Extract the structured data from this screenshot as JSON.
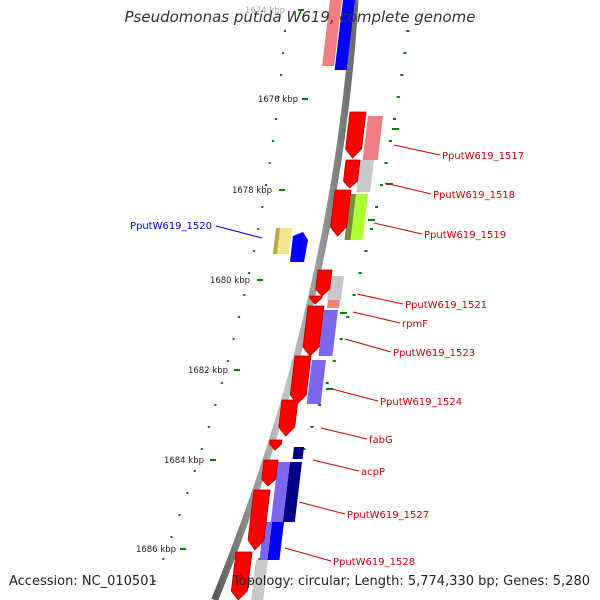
{
  "title": "Pseudomonas putida W619, complete genome",
  "accession_label": "Accession: NC_010501",
  "summary_label": "Topology: circular; Length: 5,774,330 bp; Genes: 5,280",
  "ruler": [
    {
      "kbp": 1674,
      "label": "1674 kbp"
    },
    {
      "kbp": 1676,
      "label": "1676 kbp"
    },
    {
      "kbp": 1678,
      "label": "1678 kbp"
    },
    {
      "kbp": 1680,
      "label": "1680 kbp"
    },
    {
      "kbp": 1682,
      "label": "1682 kbp"
    },
    {
      "kbp": 1684,
      "label": "1684 kbp"
    },
    {
      "kbp": 1686,
      "label": "1686 kbp"
    }
  ],
  "gene_labels": [
    {
      "text": "PputW619_1520",
      "color": "#0000cc"
    },
    {
      "text": "PputW619_1517",
      "color": "#cc0000"
    },
    {
      "text": "PputW619_1518",
      "color": "#cc0000"
    },
    {
      "text": "PputW619_1519",
      "color": "#cc0000"
    },
    {
      "text": "PputW619_1521",
      "color": "#cc0000"
    },
    {
      "text": "rpmF",
      "color": "#cc0000"
    },
    {
      "text": "PputW619_1523",
      "color": "#cc0000"
    },
    {
      "text": "PputW619_1524",
      "color": "#cc0000"
    },
    {
      "text": "fabG",
      "color": "#cc0000"
    },
    {
      "text": "acpP",
      "color": "#cc0000"
    },
    {
      "text": "PputW619_1527",
      "color": "#cc0000"
    },
    {
      "text": "PputW619_1528",
      "color": "#cc0000"
    }
  ],
  "colors": {
    "cds": "#ff0000",
    "cds_pale": "#f07d80",
    "blast_blue": "#0000ff",
    "blast_purple": "#7b68ee",
    "blast_navy": "#00008b",
    "blast_grey": "#c8c8c8",
    "blast_lime": "#adff2f",
    "blast_khaki": "#f0e68c",
    "gc_skew": "#008000",
    "backbone": "#777777"
  }
}
